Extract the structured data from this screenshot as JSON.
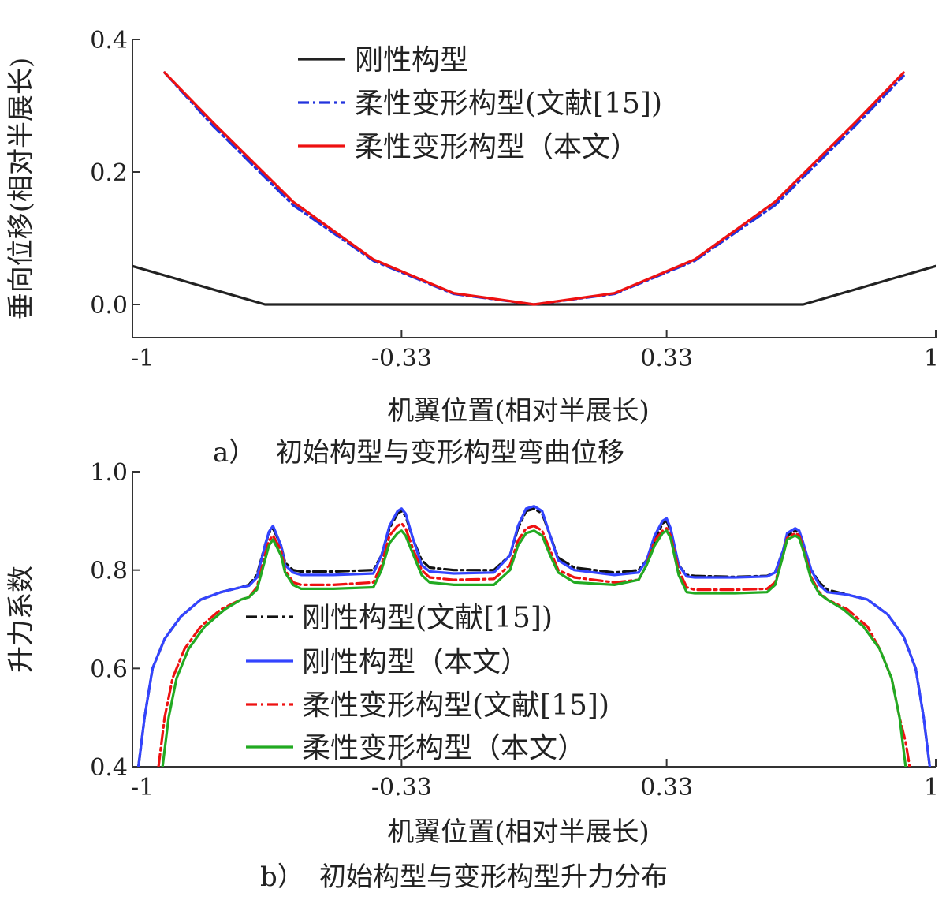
{
  "chart_data": [
    {
      "type": "line",
      "caption_tag": "a）",
      "caption_text": "初始构型与变形构型弯曲位移",
      "xlabel": "机翼位置(相对半展长)",
      "ylabel": "垂向位移(相对半展长)",
      "xlim": [
        -1,
        1
      ],
      "ylim": [
        -0.05,
        0.4
      ],
      "xticks": [
        -1,
        -0.33,
        0.33,
        1
      ],
      "xtick_labels": [
        "-1",
        "-0.33",
        "0.33",
        "1"
      ],
      "yticks": [
        0.0,
        0.2,
        0.4
      ],
      "ytick_labels": [
        "0.0",
        "0.2",
        "0.4"
      ],
      "legend_position": "top-center",
      "series": [
        {
          "name": "刚性构型",
          "color": "#222222",
          "dash": "solid",
          "x": [
            -1,
            -0.67,
            0.67,
            1
          ],
          "y": [
            0.058,
            0.0,
            0.0,
            0.058
          ]
        },
        {
          "name": "柔性变形构型(文献[15])",
          "color": "#2233dd",
          "dash": "dashdot",
          "x": [
            -0.92,
            -0.8,
            -0.6,
            -0.4,
            -0.2,
            0,
            0.2,
            0.4,
            0.6,
            0.8,
            0.92
          ],
          "y": [
            0.35,
            0.27,
            0.15,
            0.066,
            0.016,
            0.0,
            0.016,
            0.066,
            0.15,
            0.27,
            0.345
          ]
        },
        {
          "name": "柔性变形构型（本文）",
          "color": "#ee1111",
          "dash": "solid",
          "x": [
            -0.92,
            -0.8,
            -0.6,
            -0.4,
            -0.2,
            0,
            0.2,
            0.4,
            0.6,
            0.8,
            0.92
          ],
          "y": [
            0.35,
            0.275,
            0.155,
            0.068,
            0.017,
            0.0,
            0.017,
            0.068,
            0.155,
            0.275,
            0.35
          ]
        }
      ]
    },
    {
      "type": "line",
      "caption_tag": "b）",
      "caption_text": "初始构型与变形构型升力分布",
      "xlabel": "机翼位置(相对半展长)",
      "ylabel": "升力系数",
      "xlim": [
        -1,
        1
      ],
      "ylim": [
        0.4,
        1.0
      ],
      "xticks": [
        -1,
        -0.33,
        0.33,
        1
      ],
      "xtick_labels": [
        "-1",
        "-0.33",
        "0.33",
        "1"
      ],
      "yticks": [
        0.4,
        0.6,
        0.8,
        1.0
      ],
      "ytick_labels": [
        "0.4",
        "0.6",
        "0.8",
        "1.0"
      ],
      "legend_position": "bottom-center",
      "series": [
        {
          "name": "刚性构型(文献[15])",
          "color": "#111111",
          "dash": "dashdot",
          "x": [
            -0.985,
            -0.97,
            -0.95,
            -0.92,
            -0.88,
            -0.83,
            -0.78,
            -0.73,
            -0.71,
            -0.69,
            -0.67,
            -0.66,
            -0.65,
            -0.63,
            -0.62,
            -0.6,
            -0.58,
            -0.5,
            -0.4,
            -0.38,
            -0.36,
            -0.34,
            -0.33,
            -0.32,
            -0.3,
            -0.28,
            -0.26,
            -0.2,
            -0.1,
            -0.06,
            -0.04,
            -0.02,
            0.0,
            0.02,
            0.04,
            0.06,
            0.1,
            0.2,
            0.26,
            0.28,
            0.3,
            0.32,
            0.33,
            0.34,
            0.36,
            0.38,
            0.4,
            0.5,
            0.58,
            0.6,
            0.62,
            0.63,
            0.65,
            0.66,
            0.67,
            0.69,
            0.71,
            0.73,
            0.78,
            0.83,
            0.88,
            0.92,
            0.95,
            0.97,
            0.985
          ],
          "y": [
            0.4,
            0.5,
            0.6,
            0.66,
            0.705,
            0.74,
            0.755,
            0.765,
            0.77,
            0.79,
            0.85,
            0.875,
            0.885,
            0.85,
            0.815,
            0.8,
            0.797,
            0.797,
            0.8,
            0.83,
            0.885,
            0.915,
            0.92,
            0.91,
            0.86,
            0.82,
            0.805,
            0.8,
            0.8,
            0.83,
            0.885,
            0.92,
            0.925,
            0.915,
            0.87,
            0.825,
            0.805,
            0.795,
            0.8,
            0.82,
            0.86,
            0.895,
            0.9,
            0.88,
            0.81,
            0.79,
            0.788,
            0.786,
            0.788,
            0.795,
            0.84,
            0.87,
            0.88,
            0.875,
            0.85,
            0.8,
            0.775,
            0.76,
            0.75,
            0.74,
            0.71,
            0.665,
            0.6,
            0.5,
            0.4
          ]
        },
        {
          "name": "刚性构型（本文）",
          "color": "#3344ff",
          "dash": "solid",
          "x": [
            -0.985,
            -0.97,
            -0.95,
            -0.92,
            -0.88,
            -0.83,
            -0.78,
            -0.73,
            -0.71,
            -0.69,
            -0.67,
            -0.66,
            -0.65,
            -0.63,
            -0.62,
            -0.6,
            -0.58,
            -0.5,
            -0.4,
            -0.38,
            -0.36,
            -0.34,
            -0.33,
            -0.32,
            -0.3,
            -0.28,
            -0.26,
            -0.2,
            -0.1,
            -0.06,
            -0.04,
            -0.02,
            0.0,
            0.02,
            0.04,
            0.06,
            0.1,
            0.2,
            0.26,
            0.28,
            0.3,
            0.32,
            0.33,
            0.34,
            0.36,
            0.38,
            0.4,
            0.5,
            0.58,
            0.6,
            0.62,
            0.63,
            0.65,
            0.66,
            0.67,
            0.69,
            0.71,
            0.73,
            0.78,
            0.83,
            0.88,
            0.92,
            0.95,
            0.97,
            0.985
          ],
          "y": [
            0.4,
            0.5,
            0.6,
            0.66,
            0.705,
            0.74,
            0.755,
            0.765,
            0.768,
            0.785,
            0.85,
            0.878,
            0.89,
            0.85,
            0.81,
            0.795,
            0.79,
            0.79,
            0.793,
            0.83,
            0.89,
            0.92,
            0.925,
            0.915,
            0.86,
            0.81,
            0.797,
            0.793,
            0.795,
            0.83,
            0.89,
            0.925,
            0.93,
            0.92,
            0.87,
            0.82,
            0.8,
            0.79,
            0.795,
            0.82,
            0.87,
            0.9,
            0.905,
            0.885,
            0.81,
            0.787,
            0.785,
            0.785,
            0.787,
            0.795,
            0.84,
            0.875,
            0.885,
            0.88,
            0.855,
            0.8,
            0.77,
            0.755,
            0.75,
            0.74,
            0.71,
            0.665,
            0.6,
            0.5,
            0.4
          ]
        },
        {
          "name": "柔性变形构型(文献[15])",
          "color": "#ee1111",
          "dash": "dashdot",
          "x": [
            -0.935,
            -0.92,
            -0.9,
            -0.87,
            -0.83,
            -0.78,
            -0.73,
            -0.71,
            -0.69,
            -0.67,
            -0.66,
            -0.65,
            -0.63,
            -0.62,
            -0.6,
            -0.58,
            -0.5,
            -0.4,
            -0.38,
            -0.36,
            -0.34,
            -0.33,
            -0.32,
            -0.3,
            -0.28,
            -0.26,
            -0.2,
            -0.1,
            -0.06,
            -0.04,
            -0.02,
            0.0,
            0.02,
            0.04,
            0.06,
            0.1,
            0.2,
            0.26,
            0.28,
            0.3,
            0.32,
            0.33,
            0.34,
            0.36,
            0.38,
            0.4,
            0.5,
            0.58,
            0.6,
            0.62,
            0.63,
            0.65,
            0.66,
            0.67,
            0.69,
            0.71,
            0.73,
            0.78,
            0.83,
            0.86,
            0.89,
            0.91,
            0.925,
            0.935
          ],
          "y": [
            0.4,
            0.5,
            0.58,
            0.64,
            0.685,
            0.72,
            0.74,
            0.745,
            0.765,
            0.83,
            0.86,
            0.87,
            0.84,
            0.8,
            0.775,
            0.77,
            0.77,
            0.775,
            0.81,
            0.87,
            0.89,
            0.895,
            0.885,
            0.84,
            0.8,
            0.785,
            0.78,
            0.782,
            0.81,
            0.86,
            0.885,
            0.89,
            0.88,
            0.84,
            0.8,
            0.785,
            0.775,
            0.78,
            0.81,
            0.86,
            0.88,
            0.885,
            0.87,
            0.8,
            0.765,
            0.76,
            0.76,
            0.762,
            0.775,
            0.83,
            0.865,
            0.875,
            0.87,
            0.845,
            0.785,
            0.755,
            0.74,
            0.72,
            0.685,
            0.64,
            0.58,
            0.5,
            0.45,
            0.4
          ]
        },
        {
          "name": "柔性变形构型（本文）",
          "color": "#22aa22",
          "dash": "solid",
          "x": [
            -0.925,
            -0.91,
            -0.89,
            -0.86,
            -0.82,
            -0.77,
            -0.73,
            -0.71,
            -0.69,
            -0.67,
            -0.66,
            -0.65,
            -0.63,
            -0.62,
            -0.6,
            -0.58,
            -0.5,
            -0.4,
            -0.38,
            -0.36,
            -0.34,
            -0.33,
            -0.32,
            -0.3,
            -0.28,
            -0.26,
            -0.2,
            -0.1,
            -0.06,
            -0.04,
            -0.02,
            0.0,
            0.02,
            0.04,
            0.06,
            0.1,
            0.2,
            0.26,
            0.28,
            0.3,
            0.32,
            0.33,
            0.34,
            0.36,
            0.38,
            0.4,
            0.5,
            0.58,
            0.6,
            0.62,
            0.63,
            0.65,
            0.66,
            0.67,
            0.69,
            0.71,
            0.73,
            0.77,
            0.82,
            0.86,
            0.89,
            0.91,
            0.925
          ],
          "y": [
            0.4,
            0.5,
            0.58,
            0.64,
            0.685,
            0.72,
            0.74,
            0.745,
            0.76,
            0.82,
            0.85,
            0.862,
            0.83,
            0.795,
            0.77,
            0.762,
            0.762,
            0.765,
            0.8,
            0.855,
            0.875,
            0.88,
            0.87,
            0.83,
            0.79,
            0.775,
            0.77,
            0.77,
            0.8,
            0.85,
            0.875,
            0.88,
            0.87,
            0.83,
            0.795,
            0.775,
            0.77,
            0.78,
            0.81,
            0.85,
            0.875,
            0.88,
            0.865,
            0.79,
            0.755,
            0.753,
            0.753,
            0.755,
            0.77,
            0.83,
            0.862,
            0.87,
            0.865,
            0.84,
            0.78,
            0.752,
            0.74,
            0.72,
            0.685,
            0.64,
            0.58,
            0.5,
            0.4
          ]
        }
      ]
    }
  ]
}
